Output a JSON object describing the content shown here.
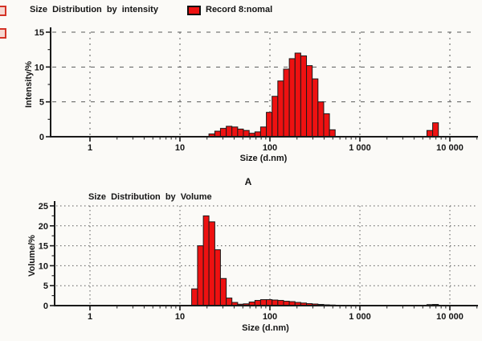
{
  "labels": {
    "panel": "A"
  },
  "colors": {
    "bar_fill": "#ee1111",
    "bar_stroke": "#1a1a1a",
    "axis": "#1a1a1a",
    "grid": "#5a5a5a",
    "text": "#151515"
  },
  "chart_data": [
    {
      "type": "bar",
      "title": "Size Distribution by intensity",
      "legend": {
        "label": "Record 8:nomal",
        "swatch_color": "#ee1111",
        "position": "top"
      },
      "xlabel": "Size (d.nm)",
      "ylabel": "Intensity/%",
      "x_scale": "log",
      "x_tick_labels": [
        "1",
        "10",
        "100",
        "1 000",
        "10 000"
      ],
      "x_tick_values": [
        1,
        10,
        100,
        1000,
        10000
      ],
      "ylim": [
        0,
        15
      ],
      "y_tick_values": [
        0,
        5,
        10,
        15
      ],
      "y_minor_step": 2.5,
      "grid": "dashed",
      "bars": [
        [
          21.0,
          24.4,
          0.4
        ],
        [
          24.4,
          28.2,
          0.8
        ],
        [
          28.2,
          32.7,
          1.2
        ],
        [
          32.7,
          37.8,
          1.5
        ],
        [
          37.8,
          43.8,
          1.4
        ],
        [
          43.8,
          50.7,
          1.1
        ],
        [
          50.7,
          58.8,
          0.9
        ],
        [
          58.8,
          68.1,
          0.5
        ],
        [
          68.1,
          78.8,
          0.7
        ],
        [
          78.8,
          91.3,
          1.4
        ],
        [
          91.3,
          105.7,
          3.5
        ],
        [
          105.7,
          122.4,
          5.8
        ],
        [
          122.4,
          141.8,
          8.0
        ],
        [
          141.8,
          164.2,
          9.7
        ],
        [
          164.2,
          190.1,
          11.2
        ],
        [
          190.1,
          220.2,
          12.0
        ],
        [
          220.2,
          255.0,
          11.6
        ],
        [
          255.0,
          295.3,
          10.2
        ],
        [
          295.3,
          342.0,
          8.3
        ],
        [
          342.0,
          396.1,
          5.0
        ],
        [
          396.1,
          458.7,
          3.3
        ],
        [
          458.7,
          531.2,
          1.0
        ],
        [
          5560,
          6439,
          0.9
        ],
        [
          6439,
          7456,
          2.0
        ]
      ]
    },
    {
      "type": "bar",
      "title": "Size Distribution by Volume",
      "xlabel": "Size (d.nm)",
      "ylabel": "Volume/%",
      "x_scale": "log",
      "x_tick_labels": [
        "1",
        "10",
        "100",
        "1 000",
        "10 000"
      ],
      "x_tick_values": [
        1,
        10,
        100,
        1000,
        10000
      ],
      "ylim": [
        0,
        25
      ],
      "y_tick_values": [
        0,
        5,
        10,
        15,
        20,
        25
      ],
      "y_minor_step": 2.5,
      "grid": "dotted",
      "bars": [
        [
          13.5,
          15.7,
          4.2
        ],
        [
          15.7,
          18.2,
          15.0
        ],
        [
          18.2,
          21.0,
          22.5
        ],
        [
          21.0,
          24.4,
          21.0
        ],
        [
          24.4,
          28.2,
          14.0
        ],
        [
          28.2,
          32.7,
          6.8
        ],
        [
          32.7,
          37.8,
          1.9
        ],
        [
          37.8,
          43.8,
          0.8
        ],
        [
          43.8,
          50.7,
          0.35
        ],
        [
          50.7,
          58.8,
          0.45
        ],
        [
          58.8,
          68.1,
          0.9
        ],
        [
          68.1,
          78.8,
          1.3
        ],
        [
          78.8,
          91.3,
          1.5
        ],
        [
          91.3,
          105.7,
          1.5
        ],
        [
          105.7,
          122.4,
          1.4
        ],
        [
          122.4,
          141.8,
          1.3
        ],
        [
          141.8,
          164.2,
          1.1
        ],
        [
          164.2,
          190.1,
          1.0
        ],
        [
          190.1,
          220.2,
          0.8
        ],
        [
          220.2,
          255.0,
          0.65
        ],
        [
          255.0,
          295.3,
          0.5
        ],
        [
          295.3,
          342.0,
          0.4
        ],
        [
          342.0,
          396.1,
          0.3
        ],
        [
          396.1,
          458.7,
          0.2
        ],
        [
          458.7,
          531.2,
          0.15
        ],
        [
          5560,
          6439,
          0.25
        ],
        [
          6439,
          7456,
          0.3
        ]
      ]
    }
  ]
}
